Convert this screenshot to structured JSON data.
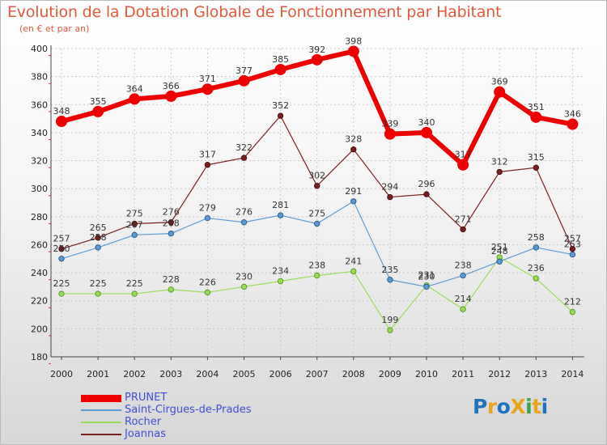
{
  "title": "Evolution de la Dotation Globale de Fonctionnement par Habitant",
  "subtitle": "(en € et par an)",
  "logo": {
    "text": "ProXiti",
    "colors": [
      "#1e73be",
      "#e8a41b",
      "#1e73be",
      "#e8a41b",
      "#3aa34a",
      "#e8a41b",
      "#1e73be"
    ]
  },
  "colors": {
    "PRUNET": "#ee0000",
    "Saint-Cirgues-de-Prades": "#5b9bd5",
    "Rocher": "#99dd55",
    "Joannas": "#7a1f1f",
    "title": "#e05a3c",
    "legend_text": "#3f4fd6"
  },
  "chart_data": {
    "type": "line",
    "title": "Evolution de la Dotation Globale de Fonctionnement par Habitant",
    "ylabel": "(en € et par an)",
    "xlabel": "",
    "x": [
      "2000",
      "2001",
      "2002",
      "2003",
      "2004",
      "2005",
      "2006",
      "2007",
      "2008",
      "2009",
      "2010",
      "2011",
      "2012",
      "2013",
      "2014"
    ],
    "ylim": [
      180,
      400
    ],
    "yticks": [
      180,
      200,
      220,
      240,
      260,
      280,
      300,
      320,
      340,
      360,
      380,
      400
    ],
    "grid": true,
    "legend_position": "bottom-left",
    "series": [
      {
        "name": "PRUNET",
        "values": [
          348,
          355,
          364,
          366,
          371,
          377,
          385,
          392,
          398,
          339,
          340,
          317,
          369,
          351,
          346
        ]
      },
      {
        "name": "Saint-Cirgues-de-Prades",
        "values": [
          250,
          258,
          267,
          268,
          279,
          276,
          281,
          275,
          291,
          235,
          230,
          238,
          248,
          258,
          253
        ]
      },
      {
        "name": "Rocher",
        "values": [
          225,
          225,
          225,
          228,
          226,
          230,
          234,
          238,
          241,
          199,
          231,
          214,
          251,
          236,
          212
        ]
      },
      {
        "name": "Joannas",
        "values": [
          257,
          265,
          275,
          276,
          317,
          322,
          352,
          302,
          328,
          294,
          296,
          271,
          312,
          315,
          257
        ]
      }
    ]
  }
}
